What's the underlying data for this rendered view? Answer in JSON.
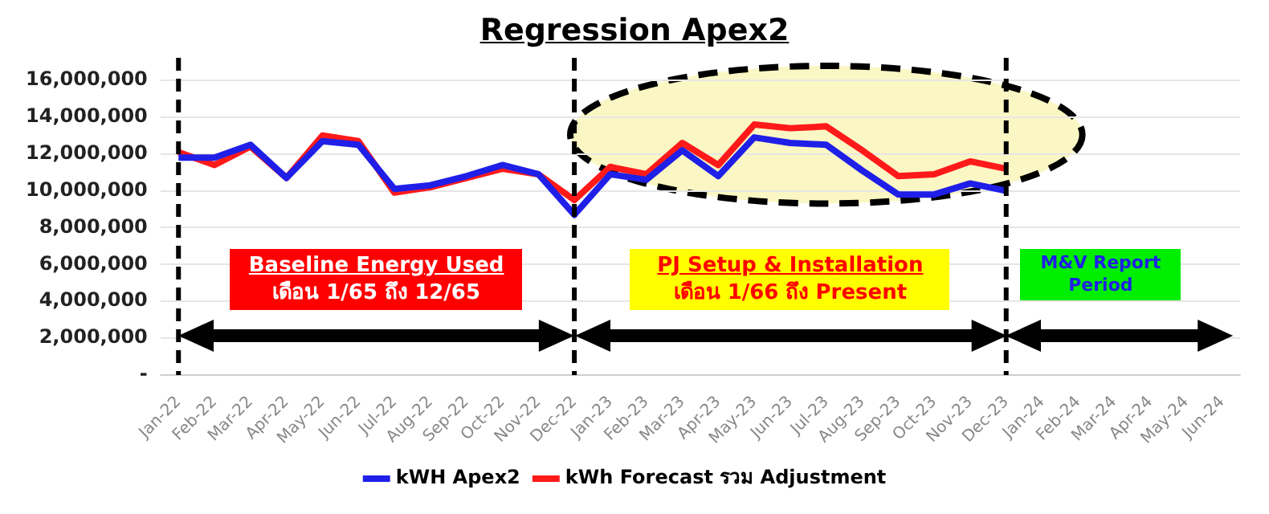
{
  "chart_data": {
    "type": "line",
    "title": "Regression Apex2",
    "categories": [
      "Jan-22",
      "Feb-22",
      "Mar-22",
      "Apr-22",
      "May-22",
      "Jun-22",
      "Jul-22",
      "Aug-22",
      "Sep-22",
      "Oct-22",
      "Nov-22",
      "Dec-22",
      "Jan-23",
      "Feb-23",
      "Mar-23",
      "Apr-23",
      "May-23",
      "Jun-23",
      "Jul-23",
      "Aug-23",
      "Sep-23",
      "Oct-23",
      "Nov-23",
      "Dec-23",
      "Jan-24",
      "Feb-24",
      "Mar-24",
      "Apr-24",
      "May-24",
      "Jun-24"
    ],
    "series": [
      {
        "name": "kWH Apex2",
        "color": "#1f1fe8",
        "values": [
          11800000,
          11800000,
          12500000,
          10700000,
          12700000,
          12500000,
          10100000,
          10300000,
          10800000,
          11400000,
          10900000,
          8700000,
          10900000,
          10600000,
          12200000,
          10800000,
          12900000,
          12600000,
          12500000,
          11100000,
          9800000,
          9800000,
          10400000,
          10000000,
          null,
          null,
          null,
          null,
          null,
          null
        ]
      },
      {
        "name": "kWh Forecast รวม Adjustment",
        "color": "#ff1a1a",
        "values": [
          12100000,
          11400000,
          12400000,
          10700000,
          13000000,
          12700000,
          9900000,
          10200000,
          10700000,
          11200000,
          10900000,
          9500000,
          11300000,
          10900000,
          12600000,
          11400000,
          13600000,
          13400000,
          13500000,
          12200000,
          10800000,
          10900000,
          11600000,
          11200000,
          null,
          null,
          null,
          null,
          null,
          null
        ]
      }
    ],
    "ylim": [
      0,
      16000000
    ],
    "yticks": [
      {
        "value": 0,
        "label": "-"
      },
      {
        "value": 2000000,
        "label": "2,000,000"
      },
      {
        "value": 4000000,
        "label": "4,000,000"
      },
      {
        "value": 6000000,
        "label": "6,000,000"
      },
      {
        "value": 8000000,
        "label": "8,000,000"
      },
      {
        "value": 10000000,
        "label": "10,000,000"
      },
      {
        "value": 12000000,
        "label": "12,000,000"
      },
      {
        "value": 14000000,
        "label": "14,000,000"
      },
      {
        "value": 16000000,
        "label": "16,000,000"
      }
    ],
    "grid": "y",
    "legend": "bottom",
    "marker": "none",
    "line_style": "solid",
    "ref_lines": [
      {
        "axis": "x",
        "value": "Jan-22",
        "color": "#000000",
        "line_style": "dashed"
      },
      {
        "axis": "x",
        "value": "Dec-22",
        "color": "#000000",
        "line_style": "dashed"
      },
      {
        "axis": "x",
        "value": "Dec-23",
        "color": "#000000",
        "line_style": "dashed"
      }
    ],
    "annotations": [
      "Baseline Energy Used\nเดือน 1/65 ถึง 12/65",
      "PJ Setup & Installation\nเดือน 1/66 ถึง Present",
      "M&V Report\nPeriod"
    ]
  }
}
